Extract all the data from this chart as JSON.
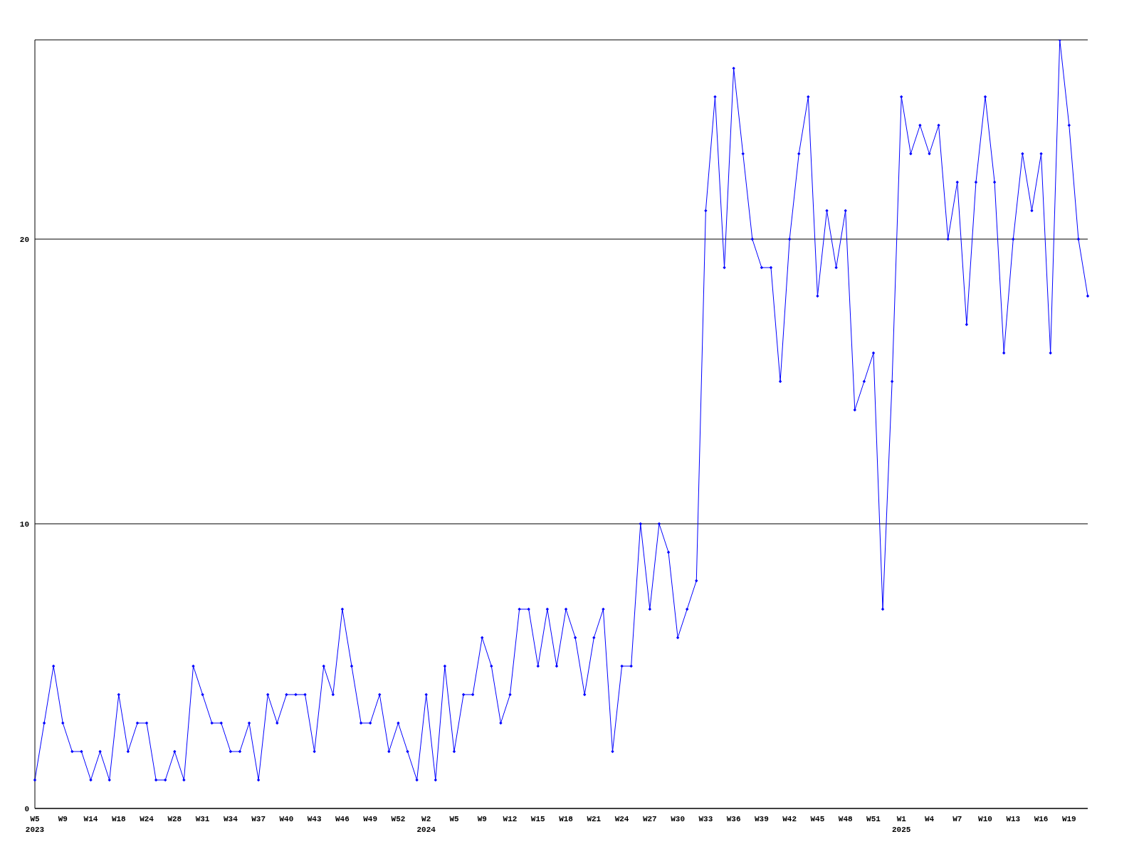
{
  "chart_data": {
    "type": "line",
    "categories": [
      "W5\n2023",
      null,
      null,
      "W9",
      null,
      null,
      "W14",
      null,
      null,
      "W18",
      null,
      null,
      "W24",
      null,
      null,
      "W28",
      null,
      null,
      "W31",
      null,
      null,
      "W34",
      null,
      null,
      "W37",
      null,
      null,
      "W40",
      null,
      null,
      "W43",
      null,
      null,
      "W46",
      null,
      null,
      "W49",
      null,
      null,
      "W52",
      null,
      null,
      "W2\n2024",
      null,
      null,
      "W5",
      null,
      null,
      "W9",
      null,
      null,
      "W12",
      null,
      null,
      "W15",
      null,
      null,
      "W18",
      null,
      null,
      "W21",
      null,
      null,
      "W24",
      null,
      null,
      "W27",
      null,
      null,
      "W30",
      null,
      null,
      "W33",
      null,
      null,
      "W36",
      null,
      null,
      "W39",
      null,
      null,
      "W42",
      null,
      null,
      "W45",
      null,
      null,
      "W48",
      null,
      null,
      "W51",
      null,
      null,
      "W1\n2025",
      null,
      null,
      "W4",
      null,
      null,
      "W7",
      null,
      null,
      "W10",
      null,
      null,
      "W13",
      null,
      null,
      "W16",
      null,
      null,
      "W19",
      null,
      null
    ],
    "series": [
      {
        "color": "#0000ff",
        "values": [
          1,
          3,
          5,
          3,
          2,
          2,
          1,
          2,
          1,
          4,
          2,
          3,
          3,
          1,
          1,
          2,
          1,
          5,
          4,
          3,
          3,
          2,
          2,
          3,
          1,
          4,
          3,
          4,
          4,
          4,
          2,
          5,
          4,
          7,
          5,
          3,
          3,
          4,
          2,
          3,
          2,
          1,
          4,
          1,
          5,
          2,
          4,
          4,
          6,
          5,
          3,
          4,
          7,
          7,
          5,
          7,
          5,
          7,
          6,
          4,
          6,
          7,
          2,
          5,
          5,
          10,
          7,
          10,
          9,
          6,
          7,
          8,
          21,
          25,
          19,
          26,
          23,
          20,
          19,
          19,
          15,
          20,
          23,
          25,
          18,
          21,
          19,
          21,
          14,
          15,
          16,
          7,
          15,
          25,
          23,
          24,
          23,
          24,
          20,
          22,
          17,
          22,
          25,
          22,
          16,
          20,
          23,
          21,
          23,
          16,
          27,
          24,
          20,
          18
        ]
      }
    ],
    "ylim": [
      0,
      27
    ],
    "yticks": [
      0,
      10,
      20
    ],
    "grid": "y",
    "marker": "diamond",
    "line_style": "solid"
  }
}
